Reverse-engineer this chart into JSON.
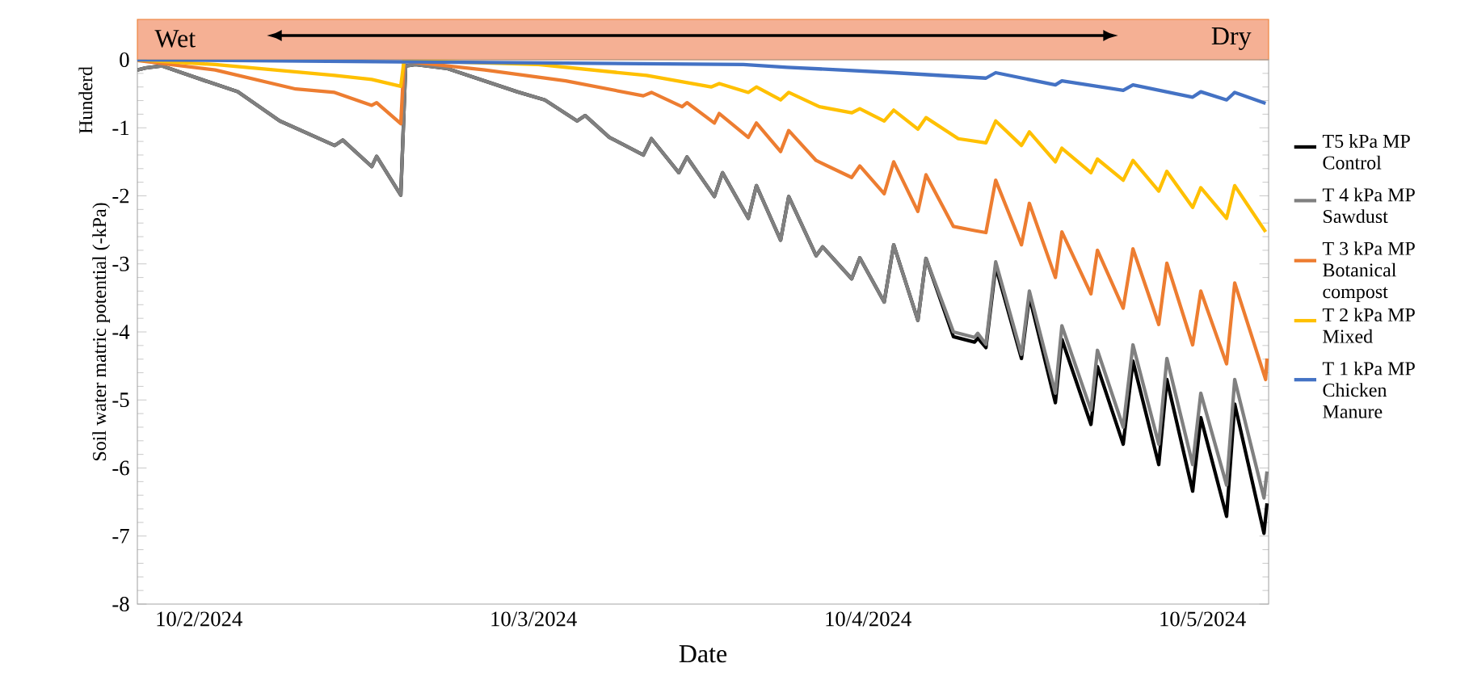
{
  "chart_data": {
    "type": "line",
    "xlabel": "Date",
    "ylabel": "Soil water matric potential (-kPa)",
    "annotations": [
      "Wet",
      "Dry",
      "Hunderd"
    ],
    "xlim": [
      "2024-10-01T19:35",
      "2024-10-05T04:45"
    ],
    "xticks": [
      {
        "value": "2024-10-02",
        "label": "10/2/2024"
      },
      {
        "value": "2024-10-03",
        "label": "10/3/2024"
      },
      {
        "value": "2024-10-04",
        "label": "10/4/2024"
      },
      {
        "value": "2024-10-05",
        "label": "10/5/2024"
      }
    ],
    "ylim": [
      -8,
      0
    ],
    "yticks": [
      -8,
      -7,
      -6,
      -5,
      -4,
      -3,
      -2,
      -1,
      0
    ],
    "legend": "right",
    "grid": false,
    "marker": "none",
    "line_style": "solid",
    "series": [
      {
        "name": "T5 kPa MP Control",
        "color": "#000000",
        "x": [
          "2024-10-01T19:35",
          "2024-10-01T20:10",
          "2024-10-01T21:20",
          "2024-10-02T00:28",
          "2024-10-02T02:47",
          "2024-10-02T05:48",
          "2024-10-02T09:44",
          "2024-10-02T10:19",
          "2024-10-02T12:24",
          "2024-10-02T12:45",
          "2024-10-02T14:29",
          "2024-10-02T14:50",
          "2024-10-02T15:32",
          "2024-10-02T17:51",
          "2024-10-02T22:50",
          "2024-10-03T00:49",
          "2024-10-03T03:08",
          "2024-10-03T03:43",
          "2024-10-03T05:27",
          "2024-10-03T07:53",
          "2024-10-03T08:28",
          "2024-10-03T10:26",
          "2024-10-03T11:01",
          "2024-10-03T12:59",
          "2024-10-03T13:34",
          "2024-10-03T15:25",
          "2024-10-03T16:00",
          "2024-10-03T17:44",
          "2024-10-03T18:19",
          "2024-10-03T20:17",
          "2024-10-03T20:45",
          "2024-10-03T22:50",
          "2024-10-03T23:25",
          "2024-10-04T01:10",
          "2024-10-04T01:51",
          "2024-10-04T03:35",
          "2024-10-04T04:10",
          "2024-10-04T06:08",
          "2024-10-04T07:39",
          "2024-10-04T07:53",
          "2024-10-04T08:28",
          "2024-10-04T09:10",
          "2024-10-04T11:01",
          "2024-10-04T11:35",
          "2024-10-04T13:27",
          "2024-10-04T13:55",
          "2024-10-04T16:00",
          "2024-10-04T16:28",
          "2024-10-04T18:19",
          "2024-10-04T19:01",
          "2024-10-04T20:52",
          "2024-10-04T21:27",
          "2024-10-04T23:18",
          "2024-10-04T23:53",
          "2024-10-05T01:44",
          "2024-10-05T02:19",
          "2024-10-05T04:25",
          "2024-10-05T04:38"
        ],
        "values": [
          -0.15,
          -0.12,
          -0.09,
          -0.31,
          -0.47,
          -0.9,
          -1.26,
          -1.18,
          -1.57,
          -1.42,
          -1.99,
          -0.09,
          -0.07,
          -0.13,
          -0.47,
          -0.59,
          -0.9,
          -0.82,
          -1.14,
          -1.4,
          -1.16,
          -1.66,
          -1.43,
          -2.01,
          -1.66,
          -2.33,
          -1.85,
          -2.65,
          -2.01,
          -2.88,
          -2.75,
          -3.22,
          -2.91,
          -3.56,
          -2.72,
          -3.83,
          -2.92,
          -4.07,
          -4.15,
          -4.09,
          -4.23,
          -3.04,
          -4.39,
          -3.48,
          -5.04,
          -4.11,
          -5.36,
          -4.51,
          -5.65,
          -4.43,
          -5.95,
          -4.7,
          -6.34,
          -5.26,
          -6.71,
          -5.06,
          -6.96,
          -6.52
        ]
      },
      {
        "name": "T 4 kPa MP Sawdust",
        "color": "#808080",
        "x": [
          "2024-10-01T19:35",
          "2024-10-01T20:10",
          "2024-10-01T21:20",
          "2024-10-02T00:28",
          "2024-10-02T02:47",
          "2024-10-02T05:48",
          "2024-10-02T09:44",
          "2024-10-02T10:19",
          "2024-10-02T12:24",
          "2024-10-02T12:45",
          "2024-10-02T14:29",
          "2024-10-02T14:50",
          "2024-10-02T15:32",
          "2024-10-02T17:51",
          "2024-10-02T22:50",
          "2024-10-03T00:49",
          "2024-10-03T03:08",
          "2024-10-03T03:43",
          "2024-10-03T05:27",
          "2024-10-03T07:53",
          "2024-10-03T08:28",
          "2024-10-03T10:26",
          "2024-10-03T11:01",
          "2024-10-03T12:59",
          "2024-10-03T13:34",
          "2024-10-03T15:25",
          "2024-10-03T16:00",
          "2024-10-03T17:44",
          "2024-10-03T18:19",
          "2024-10-03T20:17",
          "2024-10-03T20:45",
          "2024-10-03T22:50",
          "2024-10-03T23:25",
          "2024-10-04T01:10",
          "2024-10-04T01:51",
          "2024-10-04T03:35",
          "2024-10-04T04:10",
          "2024-10-04T06:08",
          "2024-10-04T07:39",
          "2024-10-04T07:53",
          "2024-10-04T08:28",
          "2024-10-04T09:10",
          "2024-10-04T11:01",
          "2024-10-04T11:35",
          "2024-10-04T13:27",
          "2024-10-04T13:55",
          "2024-10-04T16:00",
          "2024-10-04T16:28",
          "2024-10-04T18:19",
          "2024-10-04T19:01",
          "2024-10-04T20:52",
          "2024-10-04T21:27",
          "2024-10-04T23:18",
          "2024-10-04T23:53",
          "2024-10-05T01:44",
          "2024-10-05T02:19",
          "2024-10-05T04:25",
          "2024-10-05T04:38"
        ],
        "values": [
          -0.15,
          -0.12,
          -0.09,
          -0.31,
          -0.47,
          -0.9,
          -1.26,
          -1.18,
          -1.57,
          -1.42,
          -1.99,
          -0.09,
          -0.07,
          -0.13,
          -0.47,
          -0.59,
          -0.9,
          -0.82,
          -1.14,
          -1.4,
          -1.16,
          -1.66,
          -1.43,
          -2.01,
          -1.66,
          -2.33,
          -1.85,
          -2.65,
          -2.01,
          -2.88,
          -2.75,
          -3.22,
          -2.91,
          -3.56,
          -2.72,
          -3.83,
          -2.92,
          -4.0,
          -4.08,
          -4.02,
          -4.18,
          -2.97,
          -4.33,
          -3.4,
          -4.9,
          -3.91,
          -5.15,
          -4.27,
          -5.4,
          -4.19,
          -5.65,
          -4.39,
          -5.95,
          -4.9,
          -6.25,
          -4.7,
          -6.44,
          -6.05
        ]
      },
      {
        "name": "T 3 kPa MP Botanical compost",
        "color": "#ed7d31",
        "x": [
          "2024-10-01T19:35",
          "2024-10-02T01:10",
          "2024-10-02T06:57",
          "2024-10-02T09:44",
          "2024-10-02T12:24",
          "2024-10-02T12:45",
          "2024-10-02T14:29",
          "2024-10-02T14:43",
          "2024-10-02T20:31",
          "2024-10-03T02:19",
          "2024-10-03T07:53",
          "2024-10-03T08:28",
          "2024-10-03T10:40",
          "2024-10-03T11:01",
          "2024-10-03T12:59",
          "2024-10-03T13:20",
          "2024-10-03T15:25",
          "2024-10-03T16:00",
          "2024-10-03T17:44",
          "2024-10-03T18:19",
          "2024-10-03T20:17",
          "2024-10-03T22:50",
          "2024-10-03T23:25",
          "2024-10-04T01:10",
          "2024-10-04T01:51",
          "2024-10-04T03:35",
          "2024-10-04T04:10",
          "2024-10-04T06:08",
          "2024-10-04T07:39",
          "2024-10-04T08:28",
          "2024-10-04T09:10",
          "2024-10-04T11:01",
          "2024-10-04T11:35",
          "2024-10-04T13:27",
          "2024-10-04T13:55",
          "2024-10-04T16:00",
          "2024-10-04T16:28",
          "2024-10-04T18:19",
          "2024-10-04T19:01",
          "2024-10-04T20:52",
          "2024-10-04T21:27",
          "2024-10-04T23:18",
          "2024-10-04T23:53",
          "2024-10-05T01:44",
          "2024-10-05T02:19",
          "2024-10-05T04:32",
          "2024-10-05T04:38"
        ],
        "values": [
          -0.01,
          -0.15,
          -0.43,
          -0.48,
          -0.67,
          -0.63,
          -0.94,
          -0.02,
          -0.15,
          -0.31,
          -0.53,
          -0.48,
          -0.69,
          -0.63,
          -0.93,
          -0.79,
          -1.14,
          -0.93,
          -1.35,
          -1.04,
          -1.48,
          -1.73,
          -1.56,
          -1.97,
          -1.5,
          -2.23,
          -1.69,
          -2.45,
          -2.51,
          -2.54,
          -1.77,
          -2.72,
          -2.11,
          -3.2,
          -2.53,
          -3.44,
          -2.8,
          -3.65,
          -2.78,
          -3.89,
          -2.99,
          -4.19,
          -3.4,
          -4.47,
          -3.28,
          -4.7,
          -4.39
        ]
      },
      {
        "name": "T 2 kPa MP Mixed",
        "color": "#ffc000",
        "x": [
          "2024-10-01T19:35",
          "2024-10-02T01:10",
          "2024-10-02T09:44",
          "2024-10-02T12:24",
          "2024-10-02T14:29",
          "2024-10-02T14:43",
          "2024-10-03T00:21",
          "2024-10-03T08:07",
          "2024-10-03T12:45",
          "2024-10-03T13:20",
          "2024-10-03T15:25",
          "2024-10-03T16:00",
          "2024-10-03T17:44",
          "2024-10-03T18:19",
          "2024-10-03T20:31",
          "2024-10-03T22:50",
          "2024-10-03T23:25",
          "2024-10-04T01:10",
          "2024-10-04T01:51",
          "2024-10-04T03:35",
          "2024-10-04T04:10",
          "2024-10-04T06:29",
          "2024-10-04T08:28",
          "2024-10-04T09:10",
          "2024-10-04T11:01",
          "2024-10-04T11:35",
          "2024-10-04T13:27",
          "2024-10-04T13:55",
          "2024-10-04T16:00",
          "2024-10-04T16:28",
          "2024-10-04T18:19",
          "2024-10-04T19:01",
          "2024-10-04T20:52",
          "2024-10-04T21:27",
          "2024-10-04T23:18",
          "2024-10-04T23:53",
          "2024-10-05T01:44",
          "2024-10-05T02:19",
          "2024-10-05T04:32"
        ],
        "values": [
          0,
          -0.07,
          -0.23,
          -0.29,
          -0.39,
          -0.01,
          -0.07,
          -0.23,
          -0.4,
          -0.35,
          -0.48,
          -0.4,
          -0.59,
          -0.48,
          -0.69,
          -0.78,
          -0.72,
          -0.9,
          -0.74,
          -1.02,
          -0.85,
          -1.16,
          -1.22,
          -0.9,
          -1.26,
          -1.06,
          -1.5,
          -1.3,
          -1.66,
          -1.46,
          -1.77,
          -1.48,
          -1.93,
          -1.64,
          -2.17,
          -1.88,
          -2.33,
          -1.85,
          -2.53
        ]
      },
      {
        "name": "T 1 kPa MP Chicken Manure",
        "color": "#4472c4",
        "x": [
          "2024-10-01T19:35",
          "2024-10-02T14:29",
          "2024-10-03T15:04",
          "2024-10-03T18:12",
          "2024-10-04T01:51",
          "2024-10-04T08:28",
          "2024-10-04T09:10",
          "2024-10-04T13:27",
          "2024-10-04T13:55",
          "2024-10-04T18:19",
          "2024-10-04T19:01",
          "2024-10-04T23:18",
          "2024-10-04T23:53",
          "2024-10-05T01:44",
          "2024-10-05T02:19",
          "2024-10-05T04:32"
        ],
        "values": [
          0,
          -0.03,
          -0.07,
          -0.11,
          -0.19,
          -0.27,
          -0.19,
          -0.37,
          -0.31,
          -0.45,
          -0.37,
          -0.55,
          -0.47,
          -0.59,
          -0.48,
          -0.64
        ]
      }
    ]
  }
}
